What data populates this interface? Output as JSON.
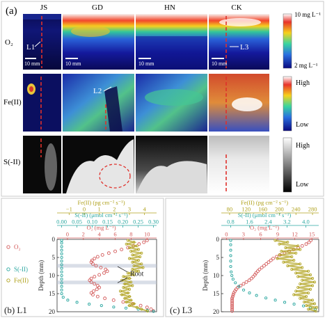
{
  "panel_a": {
    "label": "(a)",
    "columns": [
      "JS",
      "GD",
      "HN",
      "CK"
    ],
    "rows": [
      "O₂",
      "Fe(II)",
      "S(-II)"
    ],
    "scalebar": "10 mm",
    "line_labels": {
      "l1": "L1",
      "l2": "L2",
      "l3": "L3"
    },
    "colorbars": {
      "o2_top": "10 mg L⁻¹",
      "o2_bottom": "2 mg L⁻¹",
      "fe_top": "High",
      "fe_bottom": "Low",
      "s_top": "High",
      "s_bottom": "Low"
    },
    "colors": {
      "red_line": "#e0302b",
      "gold": "#b0a21e",
      "teal": "#2aa7a0",
      "salmon": "#d35a5a"
    }
  },
  "chart_data": [
    {
      "type": "scatter",
      "title": "(b) L1",
      "ylabel": "Depth (mm)",
      "ylim": [
        0,
        20
      ],
      "y_ticks": [
        0,
        5,
        10,
        15,
        20
      ],
      "axes": [
        {
          "name": "Fe(II)",
          "label": "Fe(II) (pg cm⁻² s⁻¹)",
          "ticks": [
            -1,
            0,
            1,
            2,
            3,
            4
          ],
          "range": [
            -1.8,
            4.8
          ],
          "tick_labels": [
            "−1",
            "0",
            "1",
            "2",
            "3",
            "4"
          ]
        },
        {
          "name": "S(-II)",
          "label": "S(-II) (μmol cm⁻² s⁻¹)",
          "ticks": [
            0.0,
            0.05,
            0.1,
            0.15,
            0.2,
            0.25,
            0.3
          ],
          "range": [
            -0.015,
            0.31
          ],
          "tick_labels": [
            "0.00",
            "0.05",
            "0.10",
            "0.15",
            "0.20",
            "0.25",
            "0.30"
          ]
        },
        {
          "name": "O₂",
          "label": "O₂ (mg L⁻¹)",
          "ticks": [
            0,
            2,
            4,
            6,
            8,
            10
          ],
          "range": [
            -1.3,
            11.2
          ],
          "tick_labels": [
            "0",
            "2",
            "4",
            "6",
            "8",
            "10"
          ]
        }
      ],
      "legend": [
        "O₂",
        "S(-II)",
        "Fe(II)"
      ],
      "annotation": "Root",
      "series": [
        {
          "name": "O₂",
          "axis": 2,
          "points": [
            [
              10.0,
              0.3
            ],
            [
              9.6,
              0.8
            ],
            [
              9.0,
              1.3
            ],
            [
              8.3,
              1.8
            ],
            [
              7.6,
              2.3
            ],
            [
              6.8,
              2.8
            ],
            [
              6.0,
              3.3
            ],
            [
              5.2,
              3.8
            ],
            [
              4.4,
              4.3
            ],
            [
              3.8,
              4.8
            ],
            [
              3.4,
              5.3
            ],
            [
              3.1,
              5.8
            ],
            [
              3.0,
              6.3
            ],
            [
              3.2,
              6.8
            ],
            [
              3.6,
              7.3
            ],
            [
              4.2,
              7.8
            ],
            [
              4.8,
              8.3
            ],
            [
              5.0,
              8.8
            ],
            [
              4.6,
              9.3
            ],
            [
              4.0,
              9.8
            ],
            [
              3.4,
              10.3
            ],
            [
              3.0,
              10.8
            ],
            [
              2.8,
              11.3
            ],
            [
              3.0,
              11.8
            ],
            [
              3.4,
              12.3
            ],
            [
              3.8,
              12.8
            ],
            [
              4.0,
              13.3
            ],
            [
              3.7,
              13.8
            ],
            [
              3.3,
              14.3
            ],
            [
              3.0,
              14.8
            ],
            [
              3.2,
              15.3
            ],
            [
              3.8,
              15.8
            ],
            [
              4.7,
              16.3
            ],
            [
              5.8,
              16.8
            ],
            [
              7.0,
              17.3
            ],
            [
              8.2,
              17.8
            ],
            [
              9.2,
              18.3
            ],
            [
              10.0,
              18.8
            ],
            [
              10.5,
              19.3
            ],
            [
              10.8,
              19.8
            ]
          ]
        },
        {
          "name": "S(-II)",
          "axis": 1,
          "points": [
            [
              0.0,
              0.3
            ],
            [
              0.0,
              1.0
            ],
            [
              0.0,
              2.0
            ],
            [
              0.0,
              3.0
            ],
            [
              0.0,
              4.0
            ],
            [
              0.0,
              5.0
            ],
            [
              0.0,
              6.0
            ],
            [
              0.0,
              7.0
            ],
            [
              0.0,
              8.0
            ],
            [
              0.0,
              9.0
            ],
            [
              0.0,
              10.0
            ],
            [
              0.0,
              11.0
            ],
            [
              0.0,
              12.0
            ],
            [
              0.0,
              13.0
            ],
            [
              0.0,
              14.0
            ],
            [
              0.0,
              15.0
            ],
            [
              0.005,
              16.0
            ],
            [
              0.02,
              16.8
            ],
            [
              0.05,
              17.4
            ],
            [
              0.09,
              17.9
            ],
            [
              0.13,
              18.3
            ],
            [
              0.17,
              18.7
            ],
            [
              0.21,
              19.0
            ],
            [
              0.25,
              19.3
            ],
            [
              0.28,
              19.6
            ],
            [
              0.3,
              19.9
            ]
          ]
        },
        {
          "name": "Fe(II)",
          "axis": 0,
          "points": [
            [
              2.9,
              0.3
            ],
            [
              3.3,
              0.8
            ],
            [
              2.8,
              1.3
            ],
            [
              3.5,
              1.8
            ],
            [
              3.0,
              2.3
            ],
            [
              3.6,
              2.8
            ],
            [
              3.1,
              3.3
            ],
            [
              3.8,
              3.8
            ],
            [
              3.2,
              4.3
            ],
            [
              3.7,
              4.8
            ],
            [
              3.0,
              5.3
            ],
            [
              3.6,
              5.8
            ],
            [
              3.2,
              6.3
            ],
            [
              3.8,
              6.8
            ],
            [
              3.3,
              7.3
            ],
            [
              3.9,
              7.8
            ],
            [
              3.2,
              8.3
            ],
            [
              3.6,
              8.8
            ],
            [
              2.9,
              9.3
            ],
            [
              3.3,
              9.8
            ],
            [
              2.6,
              10.3
            ],
            [
              3.0,
              10.8
            ],
            [
              2.5,
              11.3
            ],
            [
              3.1,
              11.8
            ],
            [
              2.7,
              12.3
            ],
            [
              3.2,
              12.8
            ],
            [
              2.6,
              13.3
            ],
            [
              3.0,
              13.8
            ],
            [
              2.4,
              14.3
            ],
            [
              2.9,
              14.8
            ],
            [
              2.5,
              15.3
            ],
            [
              3.0,
              15.8
            ],
            [
              2.7,
              16.3
            ],
            [
              3.1,
              16.8
            ],
            [
              2.8,
              17.3
            ],
            [
              3.3,
              17.8
            ],
            [
              3.0,
              18.3
            ],
            [
              3.5,
              18.8
            ],
            [
              3.8,
              19.3
            ],
            [
              4.2,
              19.8
            ]
          ]
        }
      ]
    },
    {
      "type": "scatter",
      "title": "(c) L3",
      "ylabel": "Depth (mm)",
      "ylim": [
        0,
        20
      ],
      "y_ticks": [
        0,
        5,
        10,
        15,
        20
      ],
      "axes": [
        {
          "name": "Fe(II)",
          "label": "Fe(II) (pg cm⁻² s⁻¹)",
          "ticks": [
            80,
            120,
            160,
            200,
            240,
            280
          ],
          "range": [
            60,
            295
          ],
          "tick_labels": [
            "80",
            "120",
            "160",
            "200",
            "240",
            "280"
          ]
        },
        {
          "name": "S(-II)",
          "label": "S(-II) (μmol cm⁻² s⁻¹)",
          "ticks": [
            0.8,
            1.6,
            2.4,
            3.2,
            4.0
          ],
          "range": [
            0.4,
            4.55
          ],
          "tick_labels": [
            "0.8",
            "1.6",
            "2.4",
            "3.2",
            "4.0"
          ]
        },
        {
          "name": "O₂",
          "label": "O₂ (mg L⁻¹)",
          "ticks": [
            0,
            3,
            6,
            9,
            12,
            15
          ],
          "range": [
            -0.9,
            16.2
          ],
          "tick_labels": [
            "0",
            "3",
            "6",
            "9",
            "12",
            "15"
          ]
        }
      ],
      "series": [
        {
          "name": "O₂",
          "axis": 2,
          "points": [
            [
              14.8,
              0.3
            ],
            [
              14.5,
              0.8
            ],
            [
              14.0,
              1.3
            ],
            [
              13.3,
              1.8
            ],
            [
              12.6,
              2.3
            ],
            [
              11.8,
              2.8
            ],
            [
              11.0,
              3.3
            ],
            [
              10.2,
              3.8
            ],
            [
              9.4,
              4.3
            ],
            [
              8.8,
              4.8
            ],
            [
              8.2,
              5.3
            ],
            [
              7.8,
              5.8
            ],
            [
              7.4,
              6.3
            ],
            [
              7.0,
              6.8
            ],
            [
              6.6,
              7.3
            ],
            [
              6.2,
              7.8
            ],
            [
              5.8,
              8.3
            ],
            [
              5.5,
              8.8
            ],
            [
              5.2,
              9.3
            ],
            [
              5.0,
              9.8
            ],
            [
              4.7,
              10.3
            ],
            [
              4.4,
              10.8
            ],
            [
              4.0,
              11.3
            ],
            [
              3.5,
              11.8
            ],
            [
              3.0,
              12.3
            ],
            [
              2.5,
              12.8
            ],
            [
              2.0,
              13.3
            ],
            [
              1.7,
              13.8
            ],
            [
              1.5,
              14.3
            ],
            [
              1.3,
              14.8
            ],
            [
              1.2,
              15.3
            ],
            [
              1.1,
              15.8
            ],
            [
              1.0,
              16.3
            ],
            [
              1.0,
              16.8
            ],
            [
              1.0,
              17.3
            ],
            [
              1.0,
              17.8
            ],
            [
              1.0,
              18.3
            ],
            [
              1.0,
              18.8
            ],
            [
              1.0,
              19.3
            ],
            [
              1.0,
              19.8
            ]
          ]
        },
        {
          "name": "S(-II)",
          "axis": 1,
          "points": [
            [
              0.8,
              0.3
            ],
            [
              0.8,
              1.5
            ],
            [
              0.8,
              3.0
            ],
            [
              0.8,
              4.5
            ],
            [
              0.8,
              6.0
            ],
            [
              0.8,
              7.5
            ],
            [
              0.82,
              9.0
            ],
            [
              0.85,
              10.0
            ],
            [
              0.9,
              11.0
            ],
            [
              1.0,
              12.0
            ],
            [
              1.15,
              13.0
            ],
            [
              1.35,
              14.0
            ],
            [
              1.6,
              14.8
            ],
            [
              1.9,
              15.5
            ],
            [
              2.3,
              16.2
            ],
            [
              2.7,
              16.8
            ],
            [
              3.1,
              17.4
            ],
            [
              3.5,
              17.9
            ],
            [
              3.9,
              18.4
            ],
            [
              4.2,
              18.9
            ],
            [
              4.4,
              19.4
            ]
          ]
        },
        {
          "name": "Fe(II)",
          "axis": 0,
          "points": [
            [
              190,
              0.3
            ],
            [
              220,
              0.8
            ],
            [
              200,
              1.3
            ],
            [
              245,
              1.8
            ],
            [
              215,
              2.3
            ],
            [
              250,
              2.8
            ],
            [
              205,
              3.3
            ],
            [
              240,
              3.8
            ],
            [
              200,
              4.3
            ],
            [
              230,
              4.8
            ],
            [
              195,
              5.3
            ],
            [
              235,
              5.8
            ],
            [
              210,
              6.3
            ],
            [
              250,
              6.8
            ],
            [
              220,
              7.3
            ],
            [
              255,
              7.8
            ],
            [
              230,
              8.3
            ],
            [
              270,
              8.8
            ],
            [
              240,
              9.3
            ],
            [
              275,
              9.8
            ],
            [
              245,
              10.3
            ],
            [
              280,
              10.8
            ],
            [
              255,
              11.3
            ],
            [
              285,
              11.8
            ],
            [
              250,
              12.3
            ],
            [
              280,
              12.8
            ],
            [
              245,
              13.3
            ],
            [
              275,
              13.8
            ],
            [
              240,
              14.3
            ],
            [
              270,
              14.8
            ],
            [
              235,
              15.3
            ],
            [
              265,
              15.8
            ],
            [
              250,
              16.3
            ],
            [
              280,
              16.8
            ],
            [
              260,
              17.3
            ],
            [
              285,
              17.8
            ],
            [
              265,
              18.3
            ],
            [
              290,
              18.8
            ],
            [
              270,
              19.3
            ],
            [
              288,
              19.8
            ]
          ]
        }
      ]
    }
  ]
}
